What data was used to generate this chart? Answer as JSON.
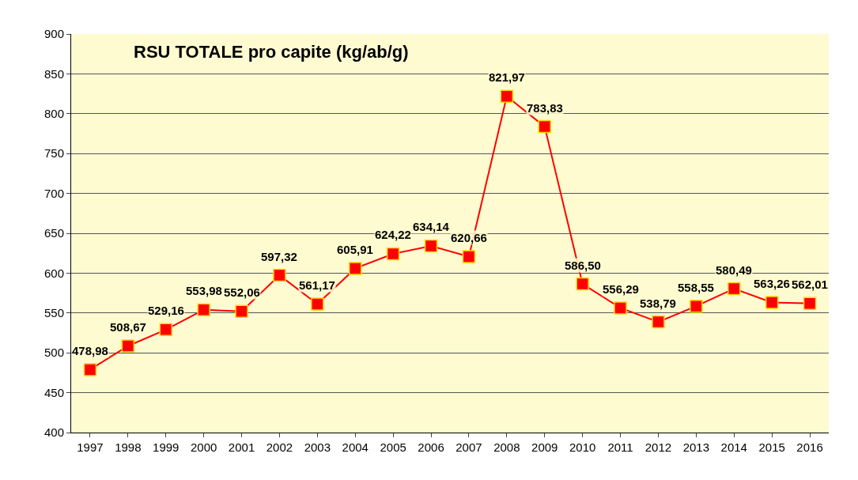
{
  "chart_data": {
    "type": "line",
    "title": "RSU TOTALE pro capite (kg/ab/g)",
    "categories": [
      "1997",
      "1998",
      "1999",
      "2000",
      "2001",
      "2002",
      "2003",
      "2004",
      "2005",
      "2006",
      "2007",
      "2008",
      "2009",
      "2010",
      "2011",
      "2012",
      "2013",
      "2014",
      "2015",
      "2016"
    ],
    "series": [
      {
        "color": "#ff0000",
        "values": [
          478.98,
          508.67,
          529.16,
          553.98,
          552.06,
          597.32,
          561.17,
          605.91,
          624.22,
          634.14,
          620.66,
          821.97,
          783.83,
          586.5,
          556.29,
          538.79,
          558.55,
          580.49,
          563.26,
          562.01
        ],
        "value_labels": [
          "478,98",
          "508,67",
          "529,16",
          "553,98",
          "552,06",
          "597,32",
          "561,17",
          "605,91",
          "624,22",
          "634,14",
          "620,66",
          "821,97",
          "783,83",
          "586,50",
          "556,29",
          "538,79",
          "558,55",
          "580,49",
          "563,26",
          "562,01"
        ]
      }
    ],
    "ylim": [
      400,
      900
    ],
    "yticks": [
      400,
      450,
      500,
      550,
      600,
      650,
      700,
      750,
      800,
      850,
      900
    ],
    "grid": "y",
    "marker": "square",
    "line_style": "solid"
  }
}
